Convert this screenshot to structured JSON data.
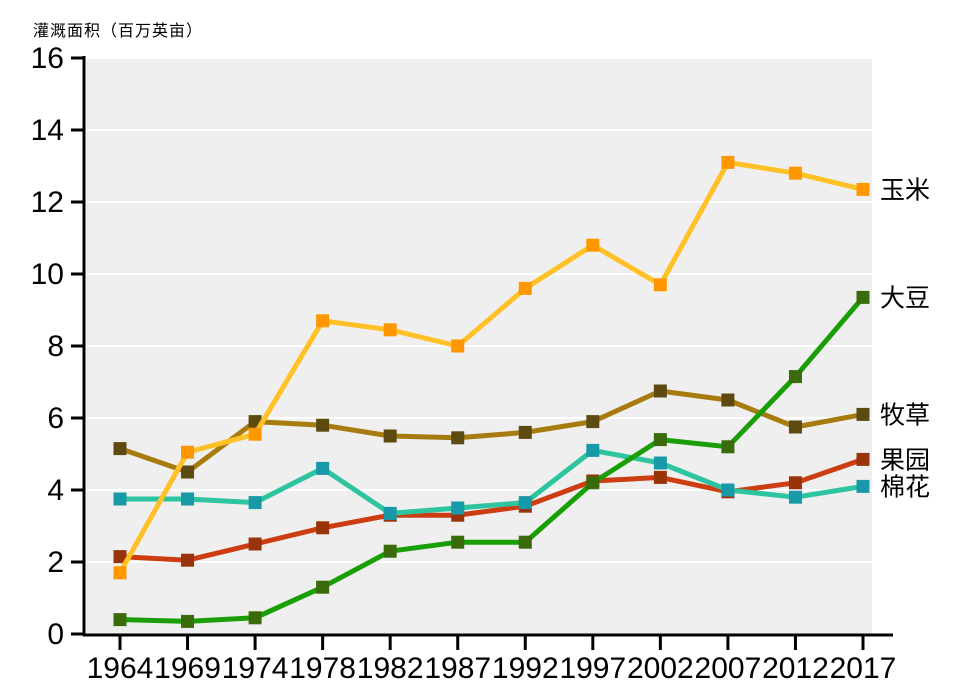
{
  "title": "灌溉面积（百万英亩）",
  "colors": {
    "plot_background": "#EFEFEF",
    "gridline": "#FFFFFF",
    "axis": "#000000",
    "text": "#000000"
  },
  "chart_data": {
    "type": "line",
    "title": "灌溉面积（百万英亩）",
    "categories": [
      "1964",
      "1969",
      "1974",
      "1978",
      "1982",
      "1987",
      "1992",
      "1997",
      "2002",
      "2007",
      "2012",
      "2017"
    ],
    "xlabel": "",
    "ylabel": "灌溉面积（百万英亩）",
    "ylim": [
      0,
      16
    ],
    "yticks": [
      0,
      2,
      4,
      6,
      8,
      10,
      12,
      14,
      16
    ],
    "grid": "horizontal white gridlines on light gray plot area",
    "legend_position": "direct labels at right of last data points",
    "marker": "square",
    "series": [
      {
        "id": "corn",
        "name": "玉米",
        "line_color": "#FFC125",
        "marker_color": "#FF9800",
        "values": [
          1.7,
          5.05,
          5.55,
          8.7,
          8.45,
          8.0,
          9.6,
          10.8,
          9.7,
          13.1,
          12.8,
          12.35
        ]
      },
      {
        "id": "soybean",
        "name": "大豆",
        "line_color": "#1A9E06",
        "marker_color": "#3A6B0A",
        "values": [
          0.4,
          0.35,
          0.45,
          1.3,
          2.3,
          2.55,
          2.55,
          4.2,
          5.4,
          5.2,
          7.15,
          9.35
        ]
      },
      {
        "id": "pasture",
        "name": "牧草",
        "line_color": "#A87B0F",
        "marker_color": "#5C4A10",
        "values": [
          5.15,
          4.5,
          5.9,
          5.8,
          5.5,
          5.45,
          5.6,
          5.9,
          6.75,
          6.5,
          5.75,
          6.1
        ]
      },
      {
        "id": "orchard",
        "name": "果园",
        "line_color": "#CC3D12",
        "marker_color": "#993309",
        "values": [
          2.15,
          2.05,
          2.5,
          2.95,
          3.3,
          3.3,
          3.55,
          4.25,
          4.35,
          3.95,
          4.2,
          4.85
        ]
      },
      {
        "id": "cotton",
        "name": "棉花",
        "line_color": "#2EC4A0",
        "marker_color": "#1899A8",
        "values": [
          3.75,
          3.75,
          3.65,
          4.6,
          3.35,
          3.5,
          3.65,
          5.1,
          4.75,
          4.0,
          3.8,
          4.1
        ]
      }
    ],
    "draw_order": [
      "orchard",
      "cotton",
      "pasture",
      "corn",
      "soybean"
    ]
  }
}
